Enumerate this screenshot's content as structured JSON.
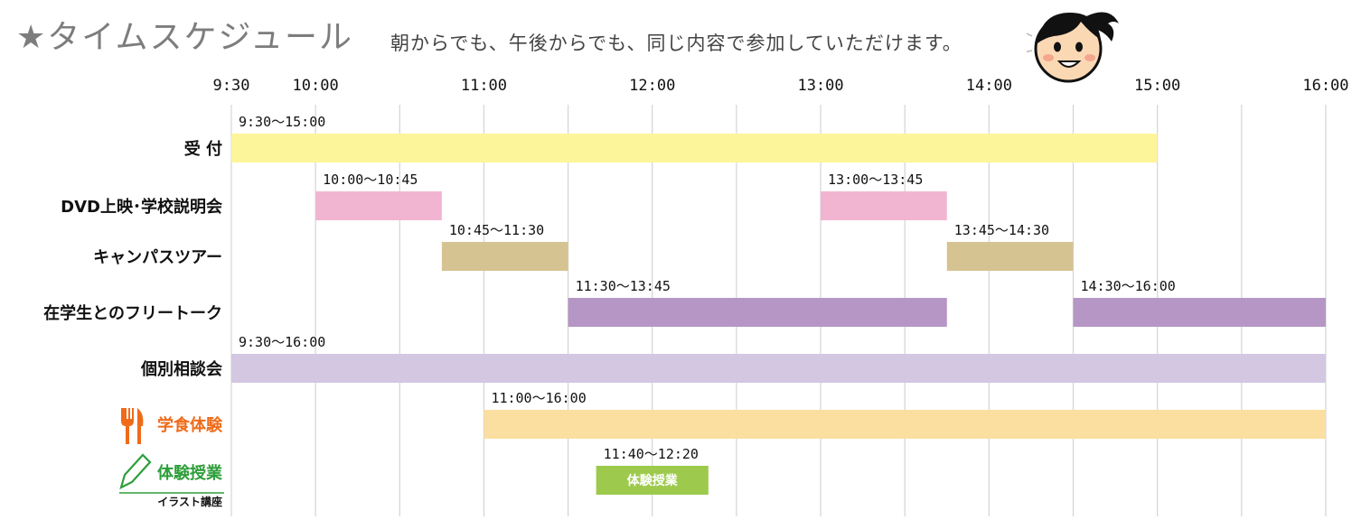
{
  "header": {
    "title": "★タイムスケジュール",
    "subtitle": "朝からでも、午後からでも、同じ内容で参加していただけます。"
  },
  "chart_data": {
    "type": "gantt",
    "x_axis": {
      "ticks": [
        "9:30",
        "10:00",
        "11:00",
        "12:00",
        "13:00",
        "14:00",
        "15:00",
        "16:00"
      ],
      "range": [
        "9:30",
        "16:00"
      ]
    },
    "grid": true,
    "rows": [
      {
        "label": "受 付",
        "color": "#fdf59a",
        "bars": [
          {
            "start": "9:30",
            "end": "15:00",
            "range_label": "9:30〜15:00"
          }
        ]
      },
      {
        "label": "DVD上映･学校説明会",
        "color": "#f2b5d1",
        "bars": [
          {
            "start": "10:00",
            "end": "10:45",
            "range_label": "10:00〜10:45"
          },
          {
            "start": "13:00",
            "end": "13:45",
            "range_label": "13:00〜13:45"
          }
        ]
      },
      {
        "label": "キャンパスツアー",
        "color": "#d6c392",
        "bars": [
          {
            "start": "10:45",
            "end": "11:30",
            "range_label": "10:45〜11:30"
          },
          {
            "start": "13:45",
            "end": "14:30",
            "range_label": "13:45〜14:30"
          }
        ]
      },
      {
        "label": "在学生とのフリートーク",
        "color": "#b596c4",
        "bars": [
          {
            "start": "11:30",
            "end": "13:45",
            "range_label": "11:30〜13:45"
          },
          {
            "start": "14:30",
            "end": "16:00",
            "range_label": "14:30〜16:00"
          }
        ]
      },
      {
        "label": "個別相談会",
        "color": "#d3c7e2",
        "bars": [
          {
            "start": "9:30",
            "end": "16:00",
            "range_label": "9:30〜16:00"
          }
        ]
      },
      {
        "label": "学食体験",
        "label_color": "#ef6b1a",
        "icon": "fork-knife-icon",
        "color": "#fbdfa1",
        "bars": [
          {
            "start": "11:00",
            "end": "16:00",
            "range_label": "11:00〜16:00"
          }
        ]
      },
      {
        "label": "体験授業",
        "sublabel": "イラスト講座",
        "label_color": "#2e9e3a",
        "icon": "pencil-icon",
        "color": "#9dca4d",
        "bars": [
          {
            "start": "11:40",
            "end": "12:20",
            "range_label": "11:40〜12:20",
            "inner_text": "体験授業"
          }
        ]
      }
    ]
  }
}
